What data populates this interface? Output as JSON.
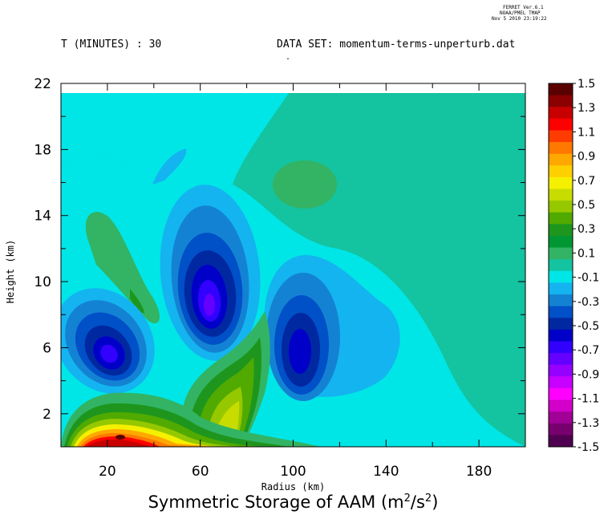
{
  "header": {
    "ferret_version": "FERRET Ver.6.1",
    "ferret_org": "NOAA/PMEL TMAP",
    "ferret_date": "Nov 5 2010 23:19:22",
    "time_label": "T (MINUTES) : 30",
    "dataset_label": "DATA SET: momentum-terms-unperturb.dat",
    "dot": "."
  },
  "chart_data": {
    "type": "contour",
    "title": "Symmetric Storage of AAM (m",
    "title_sup1": "2",
    "title_mid": "/s",
    "title_sup2": "2",
    "title_end": ")",
    "xlabel": "Radius (km)",
    "ylabel": "Height (km)",
    "xlim": [
      0,
      200
    ],
    "ylim": [
      0,
      22
    ],
    "data_top": 21.5,
    "x_ticks": [
      "20",
      "60",
      "100",
      "140",
      "180"
    ],
    "y_ticks": [
      "2",
      "6",
      "10",
      "14",
      "18",
      "22"
    ],
    "background_level": "-0.1 to 0.1",
    "colorbar": {
      "labels": [
        "1.5",
        "1.3",
        "1.1",
        "0.9",
        "0.7",
        "0.5",
        "0.3",
        "0.1",
        "-0.1",
        "-0.3",
        "-0.5",
        "-0.7",
        "-0.9",
        "-1.1",
        "-1.3",
        "-1.5"
      ],
      "colors": [
        "#5a0000",
        "#8b0000",
        "#c80000",
        "#ff0000",
        "#ff3c00",
        "#ff7800",
        "#ffa800",
        "#ffd000",
        "#f5f000",
        "#c8dc00",
        "#96c800",
        "#50aa00",
        "#1e961e",
        "#009632",
        "#32b464",
        "#14c3a0",
        "#00e6e6",
        "#14b4f0",
        "#1482d2",
        "#0050c8",
        "#0028a0",
        "#0000c8",
        "#3200ff",
        "#6400ff",
        "#9600ff",
        "#c800ff",
        "#ff00ff",
        "#d200c8",
        "#a00096",
        "#78006e",
        "#500050"
      ]
    },
    "features": [
      {
        "name": "negative-core-left",
        "center": [
          24,
          5.7
        ],
        "min": -0.7
      },
      {
        "name": "negative-core-middle",
        "center": [
          66,
          8.6
        ],
        "min": -0.9
      },
      {
        "name": "negative-core-right",
        "center": [
          104,
          5.5
        ],
        "min": -0.5
      },
      {
        "name": "positive-core-surface",
        "center": [
          27,
          0.6
        ],
        "max": 1.5
      },
      {
        "name": "positive-ridge",
        "center": [
          76,
          3
        ],
        "max": 0.5
      },
      {
        "name": "positive-upper-left",
        "center": [
          24,
          12
        ],
        "max": 0.1
      },
      {
        "name": "positive-upper-right",
        "center": [
          100,
          16
        ],
        "max": 0.1
      }
    ]
  }
}
